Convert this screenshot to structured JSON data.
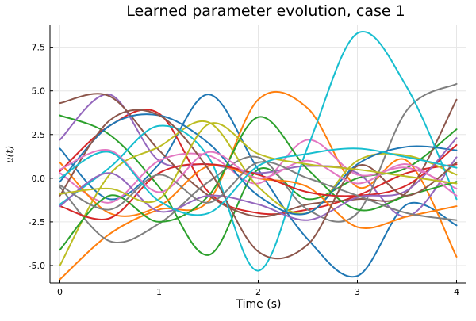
{
  "chart_data": {
    "type": "line",
    "title": "Learned parameter evolution, case 1",
    "xlabel": "Time (s)",
    "ylabel": "ū(t)",
    "xlim": [
      -0.1,
      4.1
    ],
    "ylim": [
      -6.0,
      8.8
    ],
    "xticks": [
      0,
      1,
      2,
      3,
      4
    ],
    "xtick_labels": [
      "0",
      "1",
      "2",
      "3",
      "4"
    ],
    "yticks": [
      -5.0,
      -2.5,
      0.0,
      2.5,
      5.0,
      7.5
    ],
    "ytick_labels": [
      "-5.0",
      "-2.5",
      "0.0",
      "2.5",
      "5.0",
      "7.5"
    ],
    "grid": true,
    "legend": "none",
    "x": [
      0,
      0.5,
      1,
      1.5,
      2,
      2.5,
      3,
      3.5,
      4
    ],
    "series": [
      {
        "color": "#1f77b4",
        "values": [
          1.7,
          -1.2,
          0.8,
          4.8,
          0.5,
          -3.5,
          -5.6,
          -1.5,
          -2.7
        ]
      },
      {
        "color": "#ff7f0e",
        "values": [
          -5.8,
          -3.2,
          -1.8,
          -1.3,
          4.5,
          4.0,
          -0.5,
          1.0,
          -4.5
        ]
      },
      {
        "color": "#2ca02c",
        "values": [
          3.6,
          2.5,
          -0.5,
          -4.4,
          0.5,
          -1.2,
          0.0,
          0.6,
          2.8
        ]
      },
      {
        "color": "#d62728",
        "values": [
          0.4,
          3.0,
          3.7,
          -0.8,
          -2.0,
          -1.8,
          -1.0,
          0.3,
          0.8
        ]
      },
      {
        "color": "#9467bd",
        "values": [
          2.2,
          4.8,
          1.0,
          0.8,
          0.3,
          0.7,
          0.3,
          -2.2,
          1.2
        ]
      },
      {
        "color": "#8c564b",
        "values": [
          4.3,
          4.7,
          1.6,
          -1.0,
          -2.2,
          -1.5,
          -1.2,
          -0.8,
          4.5
        ]
      },
      {
        "color": "#e377c2",
        "values": [
          0.3,
          -1.4,
          1.0,
          1.3,
          -0.3,
          2.2,
          0.2,
          0.6,
          -0.6
        ]
      },
      {
        "color": "#7f7f7f",
        "values": [
          -0.5,
          -3.6,
          -2.6,
          -0.2,
          1.2,
          -1.8,
          -2.0,
          3.9,
          5.4
        ]
      },
      {
        "color": "#bcbd22",
        "values": [
          -5.0,
          0.2,
          1.8,
          3.2,
          -0.5,
          -2.0,
          1.0,
          1.3,
          0.2
        ]
      },
      {
        "color": "#17becf",
        "values": [
          -1.5,
          0.6,
          3.0,
          1.2,
          -5.3,
          1.8,
          8.3,
          5.2,
          -1.2
        ]
      },
      {
        "color": "#1f77b4",
        "values": [
          -0.2,
          3.0,
          3.6,
          2.0,
          -1.0,
          -2.0,
          0.8,
          1.8,
          1.6
        ]
      },
      {
        "color": "#ff7f0e",
        "values": [
          0.9,
          -2.0,
          -1.6,
          0.7,
          0.0,
          -0.5,
          -2.8,
          -2.2,
          -1.6
        ]
      },
      {
        "color": "#2ca02c",
        "values": [
          -4.1,
          -1.0,
          -2.5,
          -1.0,
          3.5,
          0.5,
          -1.8,
          -1.0,
          -0.2
        ]
      },
      {
        "color": "#d62728",
        "values": [
          -1.6,
          -2.3,
          0.3,
          0.8,
          0.2,
          -0.8,
          -1.0,
          -0.4,
          1.9
        ]
      },
      {
        "color": "#9467bd",
        "values": [
          -1.6,
          0.3,
          -1.9,
          -1.0,
          -1.5,
          -2.4,
          -1.1,
          -0.7,
          2.3
        ]
      },
      {
        "color": "#8c564b",
        "values": [
          -1.0,
          3.3,
          3.6,
          0.5,
          -4.2,
          -3.8,
          0.7,
          -1.0,
          0.9
        ]
      },
      {
        "color": "#e377c2",
        "values": [
          0.5,
          1.6,
          -0.8,
          1.5,
          0.0,
          1.0,
          -0.3,
          0.8,
          -1.0
        ]
      },
      {
        "color": "#7f7f7f",
        "values": [
          -0.4,
          -1.8,
          0.2,
          -1.4,
          0.9,
          0.0,
          -1.0,
          -2.0,
          -2.4
        ]
      },
      {
        "color": "#bcbd22",
        "values": [
          -0.9,
          -0.6,
          -1.2,
          3.1,
          1.4,
          0.8,
          0.5,
          0.1,
          -0.3
        ]
      },
      {
        "color": "#17becf",
        "values": [
          0.0,
          1.5,
          -1.3,
          -2.0,
          0.7,
          1.4,
          1.7,
          1.2,
          0.6
        ]
      }
    ]
  }
}
